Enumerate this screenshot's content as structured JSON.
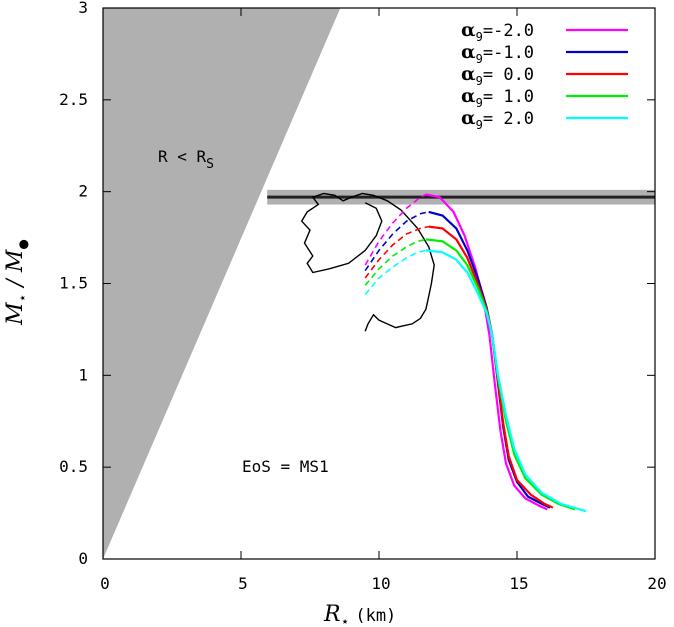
{
  "chart_data": {
    "type": "line",
    "xlabel": {
      "symbol": "R",
      "subscript": "⋆",
      "unit": "(km)"
    },
    "ylabel": {
      "symbol": "M",
      "subscript": "⋆",
      "sep": " / ",
      "symbol2": "M",
      "subscript2": "●"
    },
    "xlim": [
      0,
      20
    ],
    "ylim": [
      0,
      3
    ],
    "xticks": [
      "0",
      "5",
      "10",
      "15",
      "20"
    ],
    "yticks": [
      "0",
      "0.5",
      "1",
      "1.5",
      "2",
      "2.5",
      "3"
    ],
    "legend_placement": "top-right",
    "annotations": {
      "forbidden_region": {
        "text": "R  <  R",
        "subscript": "S",
        "color": "#b0b0b0"
      },
      "eos": "EoS = MS1"
    },
    "mass_band": {
      "value": 1.97,
      "low": 1.93,
      "high": 2.01,
      "band_color": "#b0b0b0",
      "line_color": "#222222"
    },
    "region_boundary": {
      "x": [
        9.5,
        9.9,
        10.1,
        9.9,
        9.5,
        8.9,
        8.2,
        7.6,
        7.4,
        7.6,
        7.3,
        7.5,
        7.2,
        7.4,
        7.8,
        7.6,
        8.0,
        8.4,
        8.7,
        9.0,
        9.4,
        9.8,
        10.3,
        10.8,
        11.4,
        11.8,
        12.0,
        11.9,
        11.8,
        11.7,
        11.5,
        11.2,
        10.9,
        10.6,
        10.3,
        10.0,
        9.8,
        9.6,
        9.5
      ],
      "y": [
        1.94,
        1.91,
        1.84,
        1.76,
        1.68,
        1.61,
        1.58,
        1.56,
        1.61,
        1.65,
        1.72,
        1.79,
        1.84,
        1.89,
        1.93,
        1.97,
        1.99,
        1.98,
        1.95,
        1.97,
        1.99,
        1.98,
        1.95,
        1.9,
        1.8,
        1.7,
        1.6,
        1.5,
        1.43,
        1.36,
        1.31,
        1.28,
        1.27,
        1.26,
        1.28,
        1.3,
        1.33,
        1.28,
        1.24
      ]
    },
    "series": [
      {
        "name": "α₉=-2.0",
        "label_prefix": "α",
        "label_sub": "9",
        "label_suffix": "=-2.0",
        "color": "#ff00ff",
        "dashed": {
          "x": [
            9.5,
            10.0,
            10.5,
            11.0,
            11.5,
            11.7
          ],
          "y": [
            1.6,
            1.73,
            1.83,
            1.91,
            1.97,
            1.985
          ]
        },
        "solid": {
          "x": [
            11.7,
            12.2,
            12.7,
            13.1,
            13.5,
            13.8,
            14.0,
            14.2,
            14.4,
            14.6,
            14.9,
            15.3,
            15.8,
            16.1
          ],
          "y": [
            1.985,
            1.97,
            1.89,
            1.76,
            1.58,
            1.4,
            1.22,
            0.95,
            0.7,
            0.52,
            0.4,
            0.33,
            0.29,
            0.27
          ]
        }
      },
      {
        "name": "α₉=-1.0",
        "label_prefix": "α",
        "label_sub": "9",
        "label_suffix": "=-1.0",
        "color": "#0000cc",
        "dashed": {
          "x": [
            9.5,
            10.0,
            10.5,
            11.0,
            11.5,
            11.8
          ],
          "y": [
            1.57,
            1.68,
            1.77,
            1.84,
            1.88,
            1.89
          ]
        },
        "solid": {
          "x": [
            11.8,
            12.3,
            12.8,
            13.2,
            13.6,
            13.9,
            14.1,
            14.3,
            14.5,
            14.7,
            15.0,
            15.4,
            15.9,
            16.2
          ],
          "y": [
            1.89,
            1.87,
            1.8,
            1.68,
            1.52,
            1.37,
            1.22,
            0.97,
            0.72,
            0.54,
            0.42,
            0.34,
            0.3,
            0.28
          ]
        }
      },
      {
        "name": "α₉= 0.0",
        "label_prefix": "α",
        "label_sub": "9",
        "label_suffix": "= 0.0",
        "color": "#ff0000",
        "dashed": {
          "x": [
            9.5,
            10.0,
            10.5,
            11.0,
            11.5,
            11.8
          ],
          "y": [
            1.53,
            1.63,
            1.71,
            1.77,
            1.8,
            1.81
          ]
        },
        "solid": {
          "x": [
            11.8,
            12.3,
            12.8,
            13.2,
            13.6,
            13.9,
            14.1,
            14.3,
            14.5,
            14.7,
            15.0,
            15.5,
            16.0,
            16.3
          ],
          "y": [
            1.81,
            1.8,
            1.74,
            1.64,
            1.49,
            1.36,
            1.22,
            0.98,
            0.74,
            0.56,
            0.43,
            0.35,
            0.3,
            0.28
          ]
        }
      },
      {
        "name": "α₉= 1.0",
        "label_prefix": "α",
        "label_sub": "9",
        "label_suffix": "= 1.0",
        "color": "#00ee00",
        "dashed": {
          "x": [
            9.5,
            10.0,
            10.5,
            11.0,
            11.4,
            11.7
          ],
          "y": [
            1.49,
            1.58,
            1.65,
            1.7,
            1.73,
            1.74
          ]
        },
        "solid": {
          "x": [
            11.7,
            12.3,
            12.8,
            13.2,
            13.6,
            13.9,
            14.1,
            14.3,
            14.6,
            14.9,
            15.3,
            15.9,
            16.5,
            17.1
          ],
          "y": [
            1.74,
            1.73,
            1.68,
            1.6,
            1.47,
            1.35,
            1.22,
            1.0,
            0.75,
            0.57,
            0.44,
            0.35,
            0.3,
            0.27
          ]
        }
      },
      {
        "name": "α₉= 2.0",
        "label_prefix": "α",
        "label_sub": "9",
        "label_suffix": "= 2.0",
        "color": "#00ffff",
        "dashed": {
          "x": [
            9.5,
            10.0,
            10.5,
            11.0,
            11.4,
            11.7
          ],
          "y": [
            1.44,
            1.53,
            1.59,
            1.64,
            1.67,
            1.68
          ]
        },
        "solid": {
          "x": [
            11.7,
            12.3,
            12.8,
            13.2,
            13.6,
            13.9,
            14.1,
            14.3,
            14.6,
            14.9,
            15.3,
            15.9,
            16.6,
            17.5
          ],
          "y": [
            1.68,
            1.67,
            1.63,
            1.56,
            1.44,
            1.34,
            1.22,
            1.01,
            0.78,
            0.6,
            0.46,
            0.36,
            0.3,
            0.26
          ]
        }
      }
    ]
  }
}
